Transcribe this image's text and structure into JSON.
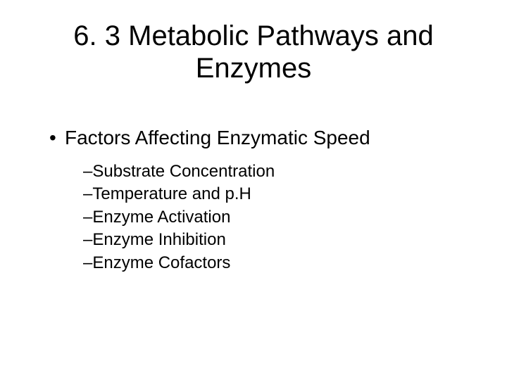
{
  "title_line1": "6. 3  Metabolic Pathways and",
  "title_line2": "Enzymes",
  "main_bullet": "Factors Affecting Enzymatic Speed",
  "sub_items": {
    "0": "Substrate Concentration",
    "1": "Temperature and p.H",
    "2": "Enzyme Activation",
    "3": "Enzyme Inhibition",
    "4": "Enzyme Cofactors"
  },
  "style": {
    "background_color": "#ffffff",
    "text_color": "#000000",
    "title_fontsize_pt": 30,
    "level1_fontsize_pt": 21,
    "level2_fontsize_pt": 18,
    "font_family": "Arial"
  }
}
